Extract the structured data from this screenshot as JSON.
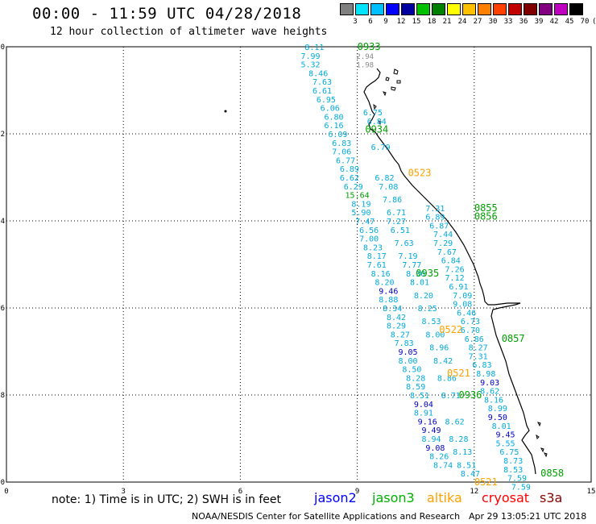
{
  "header": {
    "title": "00:00 - 11:59 UTC 04/28/2018",
    "subtitle": "12 hour collection of altimeter wave heights"
  },
  "color_scale": {
    "labels": [
      "3",
      "6",
      "9",
      "12",
      "15",
      "18",
      "21",
      "24",
      "27",
      "30",
      "33",
      "36",
      "39",
      "42",
      "45",
      "70",
      "(ft)"
    ],
    "colors": [
      "#808080",
      "#00e5ff",
      "#00bfff",
      "#0000ff",
      "#0000a0",
      "#00c000",
      "#008000",
      "#ffff00",
      "#ffc000",
      "#ff8000",
      "#ff4000",
      "#c00000",
      "#800000",
      "#800080",
      "#c000c0",
      "#000000"
    ]
  },
  "axes": {
    "x_ticks": [
      "0",
      "3",
      "6",
      "9",
      "12",
      "15"
    ],
    "y_ticks": [
      "0",
      "-2",
      "-4",
      "-6",
      "-8",
      "-10"
    ]
  },
  "tracks": {
    "label_colors": {
      "cyan": "#00aadd",
      "blue": "#0000c0",
      "green": "#00a000",
      "orange": "#ffa000",
      "grey": "#888888"
    },
    "track_a": [
      {
        "v": "8.11",
        "lon": 7.9,
        "lat": 0.0,
        "c": "cyan"
      },
      {
        "v": "7.99",
        "lon": 7.8,
        "lat": -0.2,
        "c": "cyan"
      },
      {
        "v": "5.32",
        "lon": 7.8,
        "lat": -0.4,
        "c": "cyan"
      },
      {
        "v": "8.46",
        "lon": 8.0,
        "lat": -0.6,
        "c": "cyan"
      },
      {
        "v": "7.63",
        "lon": 8.1,
        "lat": -0.8,
        "c": "cyan"
      },
      {
        "v": "6.61",
        "lon": 8.1,
        "lat": -1.0,
        "c": "cyan"
      },
      {
        "v": "6.95",
        "lon": 8.2,
        "lat": -1.2,
        "c": "cyan"
      },
      {
        "v": "6.06",
        "lon": 8.3,
        "lat": -1.4,
        "c": "cyan"
      },
      {
        "v": "6.80",
        "lon": 8.4,
        "lat": -1.6,
        "c": "cyan"
      },
      {
        "v": "6.16",
        "lon": 8.4,
        "lat": -1.8,
        "c": "cyan"
      },
      {
        "v": "6.09",
        "lon": 8.5,
        "lat": -2.0,
        "c": "cyan"
      },
      {
        "v": "6.83",
        "lon": 8.6,
        "lat": -2.2,
        "c": "cyan"
      },
      {
        "v": "7.06",
        "lon": 8.6,
        "lat": -2.4,
        "c": "cyan"
      },
      {
        "v": "6.77",
        "lon": 8.7,
        "lat": -2.6,
        "c": "cyan"
      },
      {
        "v": "6.89",
        "lon": 8.8,
        "lat": -2.8,
        "c": "cyan"
      },
      {
        "v": "6.62",
        "lon": 8.8,
        "lat": -3.0,
        "c": "cyan"
      },
      {
        "v": "6.29",
        "lon": 8.9,
        "lat": -3.2,
        "c": "cyan"
      },
      {
        "v": "15.64",
        "lon": 9.0,
        "lat": -3.4,
        "c": "green"
      },
      {
        "v": "8.19",
        "lon": 9.1,
        "lat": -3.6,
        "c": "cyan"
      },
      {
        "v": "5.90",
        "lon": 9.1,
        "lat": -3.8,
        "c": "cyan"
      },
      {
        "v": "7.47",
        "lon": 9.2,
        "lat": -4.0,
        "c": "cyan"
      },
      {
        "v": "6.56",
        "lon": 9.3,
        "lat": -4.2,
        "c": "cyan"
      },
      {
        "v": "7.00",
        "lon": 9.3,
        "lat": -4.4,
        "c": "cyan"
      },
      {
        "v": "8.23",
        "lon": 9.4,
        "lat": -4.6,
        "c": "cyan"
      },
      {
        "v": "8.17",
        "lon": 9.5,
        "lat": -4.8,
        "c": "cyan"
      },
      {
        "v": "7.61",
        "lon": 9.5,
        "lat": -5.0,
        "c": "cyan"
      },
      {
        "v": "8.16",
        "lon": 9.6,
        "lat": -5.2,
        "c": "cyan"
      },
      {
        "v": "8.20",
        "lon": 9.7,
        "lat": -5.4,
        "c": "cyan"
      },
      {
        "v": "9.46",
        "lon": 9.8,
        "lat": -5.6,
        "c": "blue"
      },
      {
        "v": "8.88",
        "lon": 9.8,
        "lat": -5.8,
        "c": "cyan"
      },
      {
        "v": "8.34",
        "lon": 9.9,
        "lat": -6.0,
        "c": "cyan"
      },
      {
        "v": "8.42",
        "lon": 10.0,
        "lat": -6.2,
        "c": "cyan"
      },
      {
        "v": "8.29",
        "lon": 10.0,
        "lat": -6.4,
        "c": "cyan"
      },
      {
        "v": "8.27",
        "lon": 10.1,
        "lat": -6.6,
        "c": "cyan"
      },
      {
        "v": "7.83",
        "lon": 10.2,
        "lat": -6.8,
        "c": "cyan"
      },
      {
        "v": "9.05",
        "lon": 10.3,
        "lat": -7.0,
        "c": "blue"
      },
      {
        "v": "8.00",
        "lon": 10.3,
        "lat": -7.2,
        "c": "cyan"
      },
      {
        "v": "8.50",
        "lon": 10.4,
        "lat": -7.4,
        "c": "cyan"
      },
      {
        "v": "8.28",
        "lon": 10.5,
        "lat": -7.6,
        "c": "cyan"
      },
      {
        "v": "8.59",
        "lon": 10.5,
        "lat": -7.8,
        "c": "cyan"
      },
      {
        "v": "8.51",
        "lon": 10.6,
        "lat": -8.0,
        "c": "cyan"
      },
      {
        "v": "9.04",
        "lon": 10.7,
        "lat": -8.2,
        "c": "blue"
      },
      {
        "v": "8.91",
        "lon": 10.7,
        "lat": -8.4,
        "c": "cyan"
      },
      {
        "v": "9.16",
        "lon": 10.8,
        "lat": -8.6,
        "c": "blue"
      },
      {
        "v": "9.49",
        "lon": 10.9,
        "lat": -8.8,
        "c": "blue"
      },
      {
        "v": "8.94",
        "lon": 10.9,
        "lat": -9.0,
        "c": "cyan"
      },
      {
        "v": "9.08",
        "lon": 11.0,
        "lat": -9.2,
        "c": "blue"
      },
      {
        "v": "8.26",
        "lon": 11.1,
        "lat": -9.4,
        "c": "cyan"
      },
      {
        "v": "8.74",
        "lon": 11.2,
        "lat": -9.6,
        "c": "cyan"
      }
    ],
    "track_b": [
      {
        "v": "7.31",
        "lon": 11.0,
        "lat": -3.7,
        "c": "cyan"
      },
      {
        "v": "6.89",
        "lon": 11.0,
        "lat": -3.9,
        "c": "cyan"
      },
      {
        "v": "6.87",
        "lon": 11.1,
        "lat": -4.1,
        "c": "cyan"
      },
      {
        "v": "7.44",
        "lon": 11.2,
        "lat": -4.3,
        "c": "cyan"
      },
      {
        "v": "7.29",
        "lon": 11.2,
        "lat": -4.5,
        "c": "cyan"
      },
      {
        "v": "7.67",
        "lon": 11.3,
        "lat": -4.7,
        "c": "cyan"
      },
      {
        "v": "6.84",
        "lon": 11.4,
        "lat": -4.9,
        "c": "cyan"
      },
      {
        "v": "7.26",
        "lon": 11.5,
        "lat": -5.1,
        "c": "cyan"
      },
      {
        "v": "7.12",
        "lon": 11.5,
        "lat": -5.3,
        "c": "cyan"
      },
      {
        "v": "6.91",
        "lon": 11.6,
        "lat": -5.5,
        "c": "cyan"
      },
      {
        "v": "7.09",
        "lon": 11.7,
        "lat": -5.7,
        "c": "cyan"
      },
      {
        "v": "9.08",
        "lon": 11.7,
        "lat": -5.9,
        "c": "cyan"
      },
      {
        "v": "6.46",
        "lon": 11.8,
        "lat": -6.1,
        "c": "cyan"
      },
      {
        "v": "6.73",
        "lon": 11.9,
        "lat": -6.3,
        "c": "cyan"
      },
      {
        "v": "6.70",
        "lon": 11.9,
        "lat": -6.5,
        "c": "cyan"
      },
      {
        "v": "6.86",
        "lon": 12.0,
        "lat": -6.7,
        "c": "cyan"
      },
      {
        "v": "8.27",
        "lon": 12.1,
        "lat": -6.9,
        "c": "cyan"
      },
      {
        "v": "7.31",
        "lon": 12.1,
        "lat": -7.1,
        "c": "cyan"
      },
      {
        "v": "6.83",
        "lon": 12.2,
        "lat": -7.3,
        "c": "cyan"
      },
      {
        "v": "8.98",
        "lon": 12.3,
        "lat": -7.5,
        "c": "cyan"
      },
      {
        "v": "9.03",
        "lon": 12.4,
        "lat": -7.7,
        "c": "blue"
      },
      {
        "v": "8.62",
        "lon": 12.4,
        "lat": -7.9,
        "c": "cyan"
      },
      {
        "v": "8.16",
        "lon": 12.5,
        "lat": -8.1,
        "c": "cyan"
      },
      {
        "v": "8.99",
        "lon": 12.6,
        "lat": -8.3,
        "c": "cyan"
      },
      {
        "v": "9.50",
        "lon": 12.6,
        "lat": -8.5,
        "c": "blue"
      },
      {
        "v": "8.01",
        "lon": 12.7,
        "lat": -8.7,
        "c": "cyan"
      },
      {
        "v": "9.45",
        "lon": 12.8,
        "lat": -8.9,
        "c": "blue"
      },
      {
        "v": "5.55",
        "lon": 12.8,
        "lat": -9.1,
        "c": "cyan"
      },
      {
        "v": "6.75",
        "lon": 12.9,
        "lat": -9.3,
        "c": "cyan"
      },
      {
        "v": "8.73",
        "lon": 13.0,
        "lat": -9.5,
        "c": "cyan"
      },
      {
        "v": "8.53",
        "lon": 13.0,
        "lat": -9.7,
        "c": "cyan"
      },
      {
        "v": "7.59",
        "lon": 13.1,
        "lat": -9.9,
        "c": "cyan"
      },
      {
        "v": "7.59",
        "lon": 13.2,
        "lat": -10.1,
        "c": "cyan"
      }
    ],
    "track_c": [
      {
        "v": "6.75",
        "lon": 9.4,
        "lat": -1.5,
        "c": "cyan"
      },
      {
        "v": "6.84",
        "lon": 9.5,
        "lat": -1.7,
        "c": "cyan"
      },
      {
        "v": "6.79",
        "lon": 9.6,
        "lat": -2.3,
        "c": "cyan"
      },
      {
        "v": "6.82",
        "lon": 9.7,
        "lat": -3.0,
        "c": "cyan"
      },
      {
        "v": "7.08",
        "lon": 9.8,
        "lat": -3.2,
        "c": "cyan"
      },
      {
        "v": "7.86",
        "lon": 9.9,
        "lat": -3.5,
        "c": "cyan"
      },
      {
        "v": "6.71",
        "lon": 10.0,
        "lat": -3.8,
        "c": "cyan"
      },
      {
        "v": "7.27",
        "lon": 10.0,
        "lat": -4.0,
        "c": "cyan"
      },
      {
        "v": "6.51",
        "lon": 10.1,
        "lat": -4.2,
        "c": "cyan"
      },
      {
        "v": "7.63",
        "lon": 10.2,
        "lat": -4.5,
        "c": "cyan"
      },
      {
        "v": "7.19",
        "lon": 10.3,
        "lat": -4.8,
        "c": "cyan"
      },
      {
        "v": "7.77",
        "lon": 10.4,
        "lat": -5.0,
        "c": "cyan"
      },
      {
        "v": "8.30",
        "lon": 10.5,
        "lat": -5.2,
        "c": "cyan"
      },
      {
        "v": "8.01",
        "lon": 10.6,
        "lat": -5.4,
        "c": "cyan"
      },
      {
        "v": "8.20",
        "lon": 10.7,
        "lat": -5.7,
        "c": "cyan"
      },
      {
        "v": "8.25",
        "lon": 10.8,
        "lat": -6.0,
        "c": "cyan"
      },
      {
        "v": "8.53",
        "lon": 10.9,
        "lat": -6.3,
        "c": "cyan"
      },
      {
        "v": "8.00",
        "lon": 11.0,
        "lat": -6.6,
        "c": "cyan"
      },
      {
        "v": "8.96",
        "lon": 11.1,
        "lat": -6.9,
        "c": "cyan"
      },
      {
        "v": "8.42",
        "lon": 11.2,
        "lat": -7.2,
        "c": "cyan"
      },
      {
        "v": "8.86",
        "lon": 11.3,
        "lat": -7.6,
        "c": "cyan"
      },
      {
        "v": "8.71",
        "lon": 11.4,
        "lat": -8.0,
        "c": "cyan"
      },
      {
        "v": "8.62",
        "lon": 11.5,
        "lat": -8.6,
        "c": "cyan"
      },
      {
        "v": "8.28",
        "lon": 11.6,
        "lat": -9.0,
        "c": "cyan"
      },
      {
        "v": "8.13",
        "lon": 11.7,
        "lat": -9.3,
        "c": "cyan"
      },
      {
        "v": "8.51",
        "lon": 11.8,
        "lat": -9.6,
        "c": "cyan"
      },
      {
        "v": "8.47",
        "lon": 11.9,
        "lat": -9.8,
        "c": "cyan"
      }
    ],
    "grey_labels": [
      {
        "v": "2.94",
        "lon": 9.2,
        "lat": -0.2,
        "c": "grey"
      },
      {
        "v": "1.98",
        "lon": 9.2,
        "lat": -0.4,
        "c": "grey"
      }
    ],
    "time_labels": [
      {
        "v": "0933",
        "lon": 9.3,
        "lat": 0.0,
        "c": "green"
      },
      {
        "v": "0934",
        "lon": 9.5,
        "lat": -1.9,
        "c": "green"
      },
      {
        "v": "0523",
        "lon": 10.6,
        "lat": -2.9,
        "c": "orange"
      },
      {
        "v": "0855",
        "lon": 12.3,
        "lat": -3.7,
        "c": "green"
      },
      {
        "v": "0856",
        "lon": 12.3,
        "lat": -3.9,
        "c": "green"
      },
      {
        "v": "0935",
        "lon": 10.8,
        "lat": -5.2,
        "c": "green"
      },
      {
        "v": "0522",
        "lon": 11.4,
        "lat": -6.5,
        "c": "orange"
      },
      {
        "v": "0857",
        "lon": 13.0,
        "lat": -6.7,
        "c": "green"
      },
      {
        "v": "0521",
        "lon": 11.6,
        "lat": -7.5,
        "c": "orange"
      },
      {
        "v": "0936",
        "lon": 11.9,
        "lat": -8.0,
        "c": "green"
      },
      {
        "v": "0858",
        "lon": 14.0,
        "lat": -9.8,
        "c": "green"
      },
      {
        "v": "0521",
        "lon": 12.3,
        "lat": -10.0,
        "c": "orange"
      }
    ]
  },
  "footer": {
    "note": "note: 1) Time is in UTC; 2) SWH is in feet",
    "satellites": [
      {
        "name": "jason2",
        "color": "#0000ff"
      },
      {
        "name": "jason3",
        "color": "#00b000"
      },
      {
        "name": "altika",
        "color": "#ffa000"
      },
      {
        "name": "cryosat",
        "color": "#ff0000"
      },
      {
        "name": "s3a",
        "color": "#8b0000"
      }
    ],
    "credit": "NOAA/NESDIS Center for Satellite Applications and Research",
    "timestamp": "Apr 29 13:05:21 UTC 2018"
  }
}
